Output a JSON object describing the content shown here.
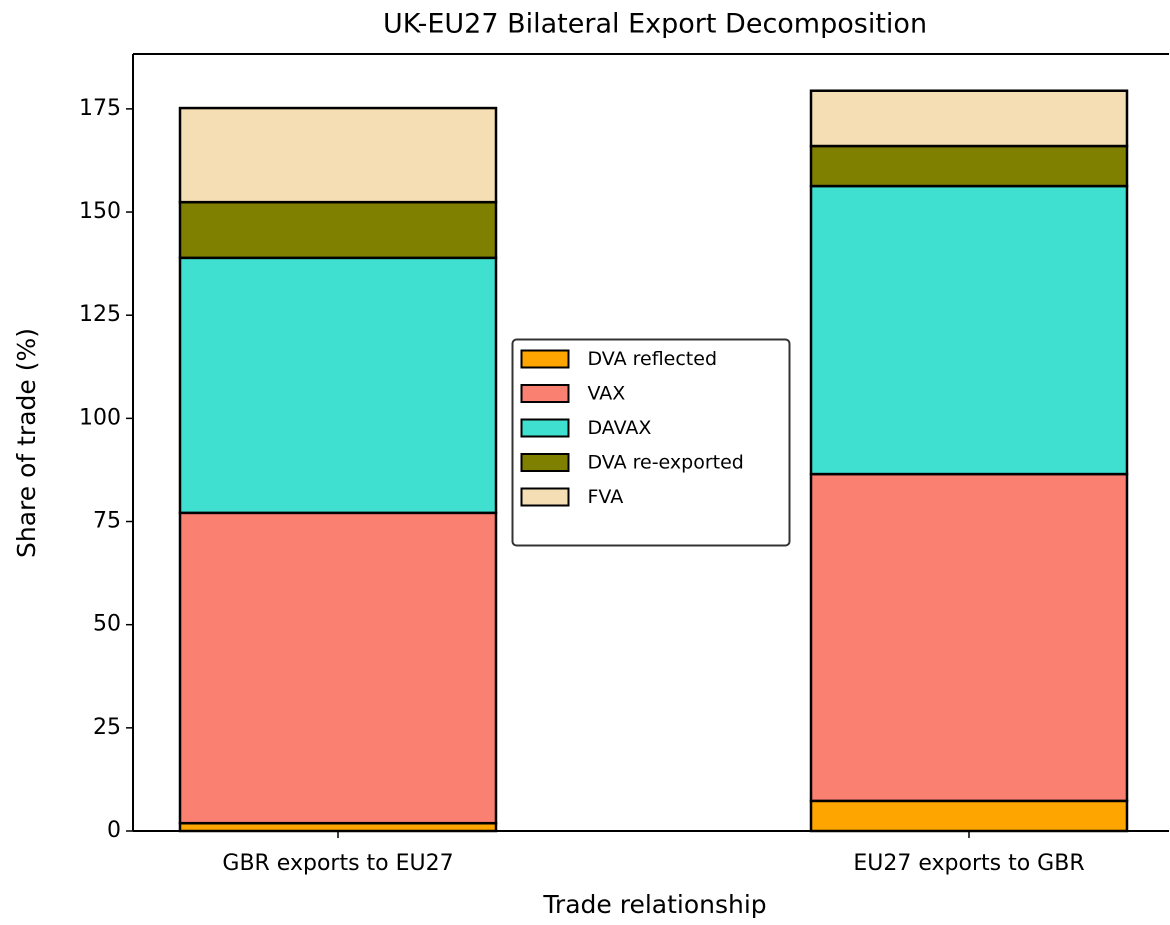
{
  "chart_data": {
    "type": "stacked_bar",
    "title": "UK-EU27 Bilateral Export Decomposition",
    "x_label": "Trade relationship",
    "y_label": "Share of trade (%)",
    "categories": [
      "GBR exports to EU27",
      "EU27 exports to GBR"
    ],
    "series": [
      {
        "name": "DVA reflected",
        "color": "#ffa500",
        "values": [
          1.9,
          7.3
        ]
      },
      {
        "name": "VAX",
        "color": "#fa8072",
        "values": [
          75.2,
          79.2
        ]
      },
      {
        "name": "DAVAX",
        "color": "#40e0d0",
        "values": [
          61.8,
          69.8
        ]
      },
      {
        "name": "DVA re-exported",
        "color": "#808000",
        "values": [
          13.5,
          9.7
        ]
      },
      {
        "name": "FVA",
        "color": "#f5deb3",
        "values": [
          22.8,
          13.4
        ]
      }
    ],
    "ylim": [
      0,
      188.3
    ],
    "yticks": [
      0,
      25,
      50,
      75,
      100,
      125,
      150,
      175
    ],
    "legend": "center"
  }
}
